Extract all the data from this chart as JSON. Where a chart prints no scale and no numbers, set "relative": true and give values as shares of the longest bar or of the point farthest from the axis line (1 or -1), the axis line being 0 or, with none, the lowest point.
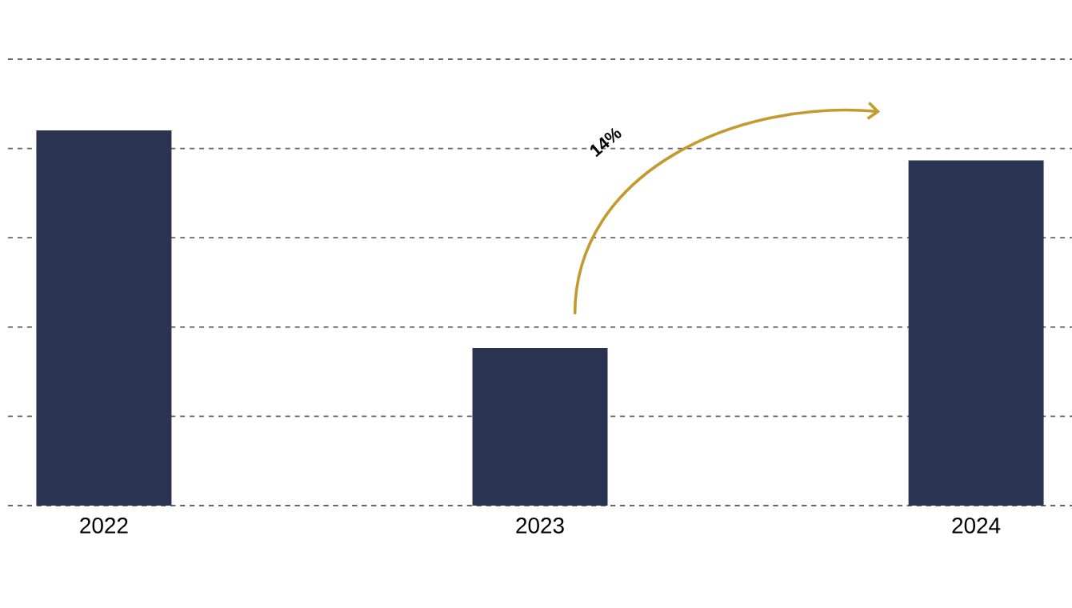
{
  "chart_data": {
    "type": "bar",
    "relative": true,
    "categories": [
      "2022",
      "2023",
      "2024"
    ],
    "values": [
      1,
      0.42,
      0.92
    ],
    "color": "#2b3352",
    "grid": "y",
    "annotations": [
      "14%"
    ]
  }
}
